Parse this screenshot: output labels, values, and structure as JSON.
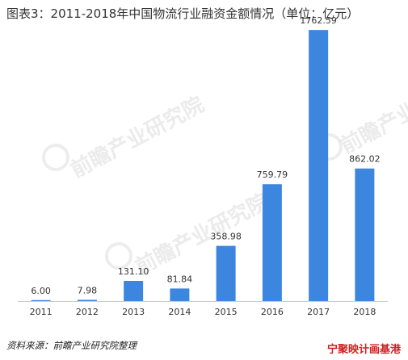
{
  "title": "图表3：2011-2018年中国物流行业融资金额情况（单位：亿元）",
  "source": "资料来源：前瞻产业研究院整理",
  "watermark": "前瞻产业研究院",
  "stamp": "宁聚映计画基港",
  "colors": {
    "bar": "#3d86e0",
    "axis": "#cccccc",
    "text": "#333333"
  },
  "chart_data": {
    "type": "bar",
    "title": "图表3：2011-2018年中国物流行业融资金额情况（单位：亿元）",
    "xlabel": "",
    "ylabel": "",
    "categories": [
      "2011",
      "2012",
      "2013",
      "2014",
      "2015",
      "2016",
      "2017",
      "2018"
    ],
    "values": [
      6.0,
      7.98,
      131.1,
      81.84,
      358.98,
      759.79,
      1762.59,
      862.02
    ],
    "data_labels": [
      "6.00",
      "7.98",
      "131.10",
      "81.84",
      "358.98",
      "759.79",
      "1762.59",
      "862.02"
    ],
    "ylim": [
      0,
      1800
    ],
    "grid": false,
    "legend": "none"
  }
}
